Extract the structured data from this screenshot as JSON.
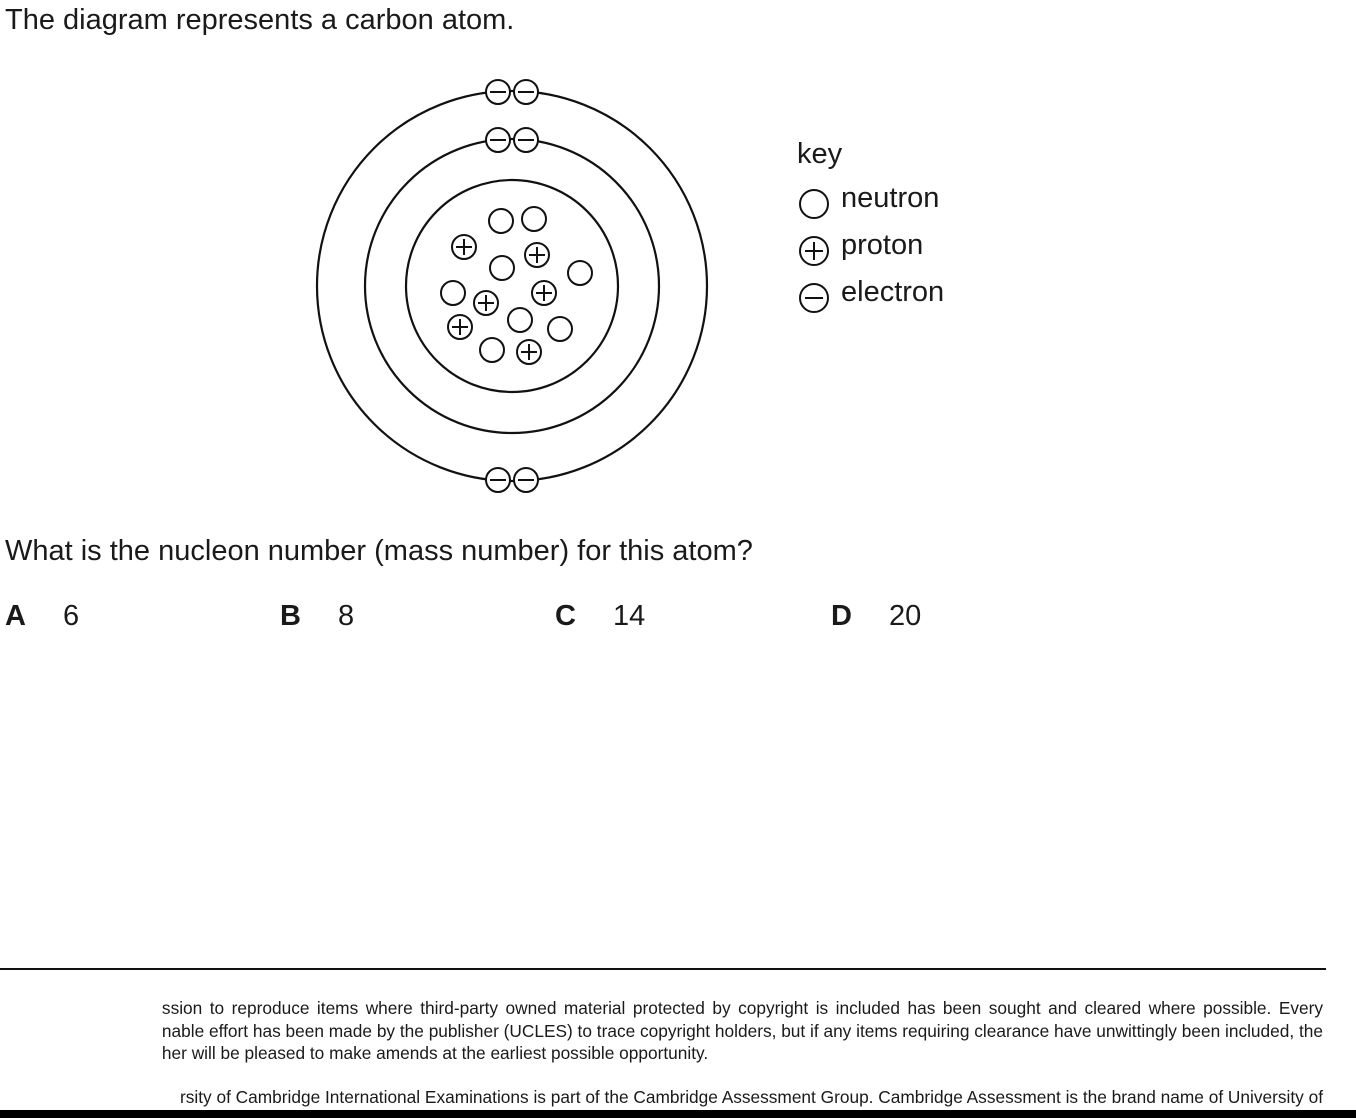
{
  "intro": "The diagram represents a carbon atom.",
  "key": {
    "title": "key",
    "items": [
      {
        "symbol": "neutron-icon",
        "label": "neutron"
      },
      {
        "symbol": "proton-icon",
        "label": "proton"
      },
      {
        "symbol": "electron-icon",
        "label": "electron"
      }
    ]
  },
  "question": "What is the nucleon number (mass number) for this atom?",
  "options": [
    {
      "letter": "A",
      "value": "6"
    },
    {
      "letter": "B",
      "value": "8"
    },
    {
      "letter": "C",
      "value": "14"
    },
    {
      "letter": "D",
      "value": "20"
    }
  ],
  "footer": {
    "lines1": [
      "ssion to reproduce items where third-party owned material protected by copyright is included has been sought and cleared where possible. Every",
      "nable effort has been made by the publisher (UCLES) to trace copyright holders, but if any items requiring clearance have unwittingly been included, the",
      "her will be pleased to make amends at the earliest possible opportunity."
    ],
    "line2": "rsity of Cambridge International Examinations is part of the Cambridge Assessment Group. Cambridge Assessment is the brand name of University of"
  }
}
